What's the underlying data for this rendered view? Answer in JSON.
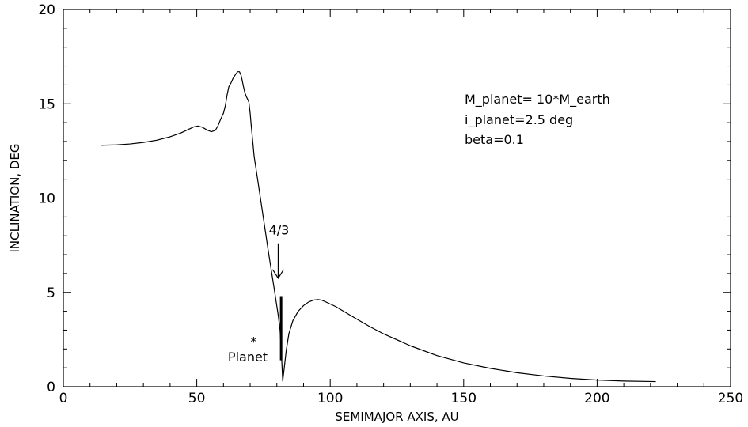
{
  "chart_data": {
    "type": "line",
    "title": "",
    "xlabel": "SEMIMAJOR AXIS, AU",
    "ylabel": "INCLINATION, DEG",
    "xlim": [
      0,
      250
    ],
    "ylim": [
      0,
      20
    ],
    "xticks": [
      0,
      50,
      100,
      150,
      200,
      250
    ],
    "yticks": [
      0,
      5,
      10,
      15,
      20
    ],
    "x_minor_step": 10,
    "y_minor_step": 1,
    "grid": false,
    "legend": "none",
    "line_color": "#000000",
    "series": [
      {
        "x": [
          14,
          20,
          25,
          30,
          35,
          40,
          44,
          47,
          49,
          50.5,
          52,
          54,
          55.5,
          57,
          58,
          59,
          60,
          60.7,
          61.4,
          62,
          62.8,
          63.6,
          64.5,
          65.3,
          66,
          66.6,
          67,
          67.5,
          68,
          68.5,
          69,
          69.5,
          70,
          70.3,
          71.5,
          73,
          75,
          77,
          79,
          80.5,
          81.2,
          81.7,
          82.2,
          82.7,
          83.5,
          84.5,
          86,
          88,
          90,
          92,
          94,
          95.5,
          97,
          99,
          102,
          105,
          110,
          115,
          120,
          130,
          140,
          150,
          160,
          170,
          180,
          190,
          200,
          210,
          222
        ],
        "y": [
          12.8,
          12.82,
          12.87,
          12.95,
          13.07,
          13.25,
          13.45,
          13.65,
          13.78,
          13.82,
          13.76,
          13.6,
          13.52,
          13.6,
          13.85,
          14.2,
          14.5,
          14.9,
          15.5,
          15.9,
          16.1,
          16.35,
          16.55,
          16.7,
          16.7,
          16.5,
          16.25,
          15.9,
          15.6,
          15.4,
          15.25,
          15.1,
          14.5,
          14.0,
          12.2,
          10.8,
          8.9,
          7.0,
          5.2,
          3.8,
          3.0,
          1.8,
          0.3,
          0.9,
          1.9,
          2.8,
          3.5,
          4.0,
          4.3,
          4.5,
          4.6,
          4.62,
          4.58,
          4.45,
          4.25,
          4.0,
          3.58,
          3.17,
          2.8,
          2.17,
          1.65,
          1.26,
          0.97,
          0.74,
          0.57,
          0.44,
          0.35,
          0.3,
          0.27
        ]
      }
    ],
    "resonance_band": {
      "x": 81.6,
      "y_min": 1.4,
      "y_max": 4.8
    },
    "annotations": {
      "params_line1": "M_planet=  10*M_earth",
      "params_line2": "i_planet=2.5 deg",
      "params_line3": "beta=0.1",
      "resonance_label": "4/3",
      "resonance_arrow": {
        "x": 80.5,
        "y_from": 7.6,
        "y_to": 5.75
      },
      "planet_label": "Planet",
      "planet_marker_symbol": "*",
      "planet_marker": {
        "x": 71.3,
        "y": 2.5
      }
    }
  }
}
